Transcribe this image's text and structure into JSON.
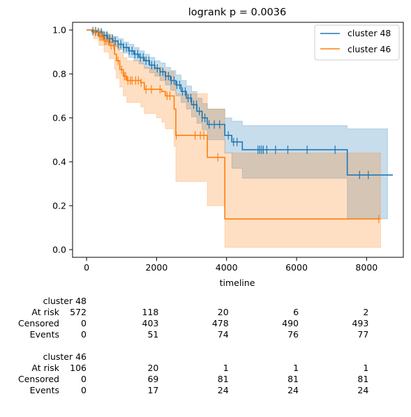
{
  "chart_data": {
    "type": "line",
    "title": "logrank p = 0.0036",
    "xlabel": "timeline",
    "ylabel": "",
    "xlim": [
      -400,
      9050
    ],
    "ylim": [
      -0.035,
      1.035
    ],
    "xticks": [
      0,
      2000,
      4000,
      6000,
      8000
    ],
    "yticks": [
      0.0,
      0.2,
      0.4,
      0.6,
      0.8,
      1.0
    ],
    "xtick_labels": [
      "0",
      "2000",
      "4000",
      "6000",
      "8000"
    ],
    "ytick_labels": [
      "0.0",
      "0.2",
      "0.4",
      "0.6",
      "0.8",
      "1.0"
    ],
    "legend_position": "top-right",
    "series": [
      {
        "name": "cluster 48",
        "color": "#1f77b4",
        "steps": [
          [
            0,
            1.0
          ],
          [
            150,
            0.995
          ],
          [
            300,
            0.99
          ],
          [
            450,
            0.975
          ],
          [
            600,
            0.96
          ],
          [
            750,
            0.95
          ],
          [
            900,
            0.935
          ],
          [
            1050,
            0.92
          ],
          [
            1200,
            0.905
          ],
          [
            1350,
            0.89
          ],
          [
            1500,
            0.875
          ],
          [
            1650,
            0.86
          ],
          [
            1800,
            0.84
          ],
          [
            1950,
            0.825
          ],
          [
            2100,
            0.81
          ],
          [
            2250,
            0.79
          ],
          [
            2400,
            0.77
          ],
          [
            2550,
            0.75
          ],
          [
            2700,
            0.72
          ],
          [
            2850,
            0.69
          ],
          [
            3000,
            0.66
          ],
          [
            3150,
            0.63
          ],
          [
            3300,
            0.6
          ],
          [
            3450,
            0.57
          ],
          [
            3950,
            0.52
          ],
          [
            4150,
            0.49
          ],
          [
            4450,
            0.455
          ],
          [
            7450,
            0.34
          ],
          [
            8750,
            0.34
          ]
        ],
        "ci_upper": [
          [
            0,
            1.0
          ],
          [
            150,
            1.0
          ],
          [
            300,
            1.0
          ],
          [
            450,
            0.99
          ],
          [
            600,
            0.98
          ],
          [
            750,
            0.97
          ],
          [
            900,
            0.96
          ],
          [
            1050,
            0.945
          ],
          [
            1200,
            0.935
          ],
          [
            1350,
            0.92
          ],
          [
            1500,
            0.905
          ],
          [
            1650,
            0.89
          ],
          [
            1800,
            0.875
          ],
          [
            1950,
            0.86
          ],
          [
            2100,
            0.85
          ],
          [
            2250,
            0.83
          ],
          [
            2400,
            0.815
          ],
          [
            2550,
            0.795
          ],
          [
            2700,
            0.77
          ],
          [
            2850,
            0.745
          ],
          [
            3000,
            0.72
          ],
          [
            3150,
            0.69
          ],
          [
            3300,
            0.665
          ],
          [
            3450,
            0.64
          ],
          [
            3950,
            0.6
          ],
          [
            4150,
            0.585
          ],
          [
            4450,
            0.565
          ],
          [
            7450,
            0.55
          ],
          [
            8600,
            0.55
          ]
        ],
        "ci_lower": [
          [
            0,
            1.0
          ],
          [
            150,
            0.985
          ],
          [
            300,
            0.975
          ],
          [
            450,
            0.955
          ],
          [
            600,
            0.94
          ],
          [
            750,
            0.925
          ],
          [
            900,
            0.91
          ],
          [
            1050,
            0.895
          ],
          [
            1200,
            0.875
          ],
          [
            1350,
            0.86
          ],
          [
            1500,
            0.845
          ],
          [
            1650,
            0.825
          ],
          [
            1800,
            0.805
          ],
          [
            1950,
            0.79
          ],
          [
            2100,
            0.77
          ],
          [
            2250,
            0.75
          ],
          [
            2400,
            0.725
          ],
          [
            2550,
            0.7
          ],
          [
            2700,
            0.67
          ],
          [
            2850,
            0.64
          ],
          [
            3000,
            0.605
          ],
          [
            3150,
            0.575
          ],
          [
            3300,
            0.545
          ],
          [
            3450,
            0.5
          ],
          [
            3950,
            0.44
          ],
          [
            4150,
            0.37
          ],
          [
            4450,
            0.325
          ],
          [
            7450,
            0.14
          ],
          [
            8600,
            0.14
          ]
        ],
        "censor_times": [
          180,
          260,
          340,
          420,
          500,
          580,
          660,
          740,
          820,
          900,
          980,
          1060,
          1140,
          1220,
          1300,
          1380,
          1460,
          1540,
          1620,
          1700,
          1780,
          1860,
          1940,
          2020,
          2100,
          2180,
          2260,
          2340,
          2420,
          2500,
          2580,
          2660,
          2740,
          2820,
          2900,
          2980,
          3060,
          3140,
          3220,
          3300,
          3380,
          3500,
          3650,
          3800,
          4050,
          4200,
          4300,
          4900,
          4950,
          5000,
          5050,
          5150,
          5400,
          5750,
          6300,
          7100,
          7800,
          8050
        ]
      },
      {
        "name": "cluster 46",
        "color": "#ff7f0e",
        "steps": [
          [
            0,
            1.0
          ],
          [
            200,
            0.99
          ],
          [
            350,
            0.97
          ],
          [
            500,
            0.95
          ],
          [
            650,
            0.93
          ],
          [
            800,
            0.89
          ],
          [
            850,
            0.86
          ],
          [
            950,
            0.82
          ],
          [
            1050,
            0.79
          ],
          [
            1150,
            0.77
          ],
          [
            1550,
            0.76
          ],
          [
            1650,
            0.73
          ],
          [
            2000,
            0.73
          ],
          [
            2150,
            0.72
          ],
          [
            2250,
            0.7
          ],
          [
            2500,
            0.64
          ],
          [
            2550,
            0.52
          ],
          [
            3450,
            0.42
          ],
          [
            3950,
            0.14
          ],
          [
            8400,
            0.14
          ]
        ],
        "ci_upper": [
          [
            0,
            1.0
          ],
          [
            200,
            1.0
          ],
          [
            350,
            0.995
          ],
          [
            500,
            0.985
          ],
          [
            650,
            0.97
          ],
          [
            800,
            0.945
          ],
          [
            850,
            0.93
          ],
          [
            950,
            0.9
          ],
          [
            1050,
            0.875
          ],
          [
            1150,
            0.86
          ],
          [
            1550,
            0.85
          ],
          [
            1650,
            0.83
          ],
          [
            2000,
            0.83
          ],
          [
            2150,
            0.82
          ],
          [
            2250,
            0.81
          ],
          [
            2500,
            0.76
          ],
          [
            2550,
            0.71
          ],
          [
            3450,
            0.64
          ],
          [
            3950,
            0.44
          ],
          [
            8400,
            0.44
          ]
        ],
        "ci_lower": [
          [
            0,
            1.0
          ],
          [
            200,
            0.96
          ],
          [
            350,
            0.93
          ],
          [
            500,
            0.9
          ],
          [
            650,
            0.87
          ],
          [
            800,
            0.82
          ],
          [
            850,
            0.78
          ],
          [
            950,
            0.74
          ],
          [
            1050,
            0.7
          ],
          [
            1150,
            0.67
          ],
          [
            1550,
            0.65
          ],
          [
            1650,
            0.62
          ],
          [
            2000,
            0.6
          ],
          [
            2150,
            0.58
          ],
          [
            2250,
            0.55
          ],
          [
            2500,
            0.47
          ],
          [
            2550,
            0.31
          ],
          [
            3450,
            0.2
          ],
          [
            3950,
            0.01
          ],
          [
            8400,
            0.01
          ]
        ],
        "censor_times": [
          250,
          330,
          380,
          420,
          460,
          520,
          560,
          620,
          700,
          780,
          900,
          1000,
          1080,
          1120,
          1180,
          1250,
          1300,
          1400,
          1480,
          1560,
          1700,
          1850,
          2100,
          2300,
          2380,
          2560,
          3100,
          3250,
          3350,
          3750,
          8350
        ]
      }
    ]
  },
  "at_risk_table": {
    "groups": [
      {
        "name": "cluster 48",
        "rows": [
          {
            "label": "At risk",
            "values": [
              "572",
              "118",
              "20",
              "6",
              "2"
            ]
          },
          {
            "label": "Censored",
            "values": [
              "0",
              "403",
              "478",
              "490",
              "493"
            ]
          },
          {
            "label": "Events",
            "values": [
              "0",
              "51",
              "74",
              "76",
              "77"
            ]
          }
        ]
      },
      {
        "name": "cluster 46",
        "rows": [
          {
            "label": "At risk",
            "values": [
              "106",
              "20",
              "1",
              "1",
              "1"
            ]
          },
          {
            "label": "Censored",
            "values": [
              "0",
              "69",
              "81",
              "81",
              "81"
            ]
          },
          {
            "label": "Events",
            "values": [
              "0",
              "17",
              "24",
              "24",
              "24"
            ]
          }
        ]
      }
    ]
  }
}
